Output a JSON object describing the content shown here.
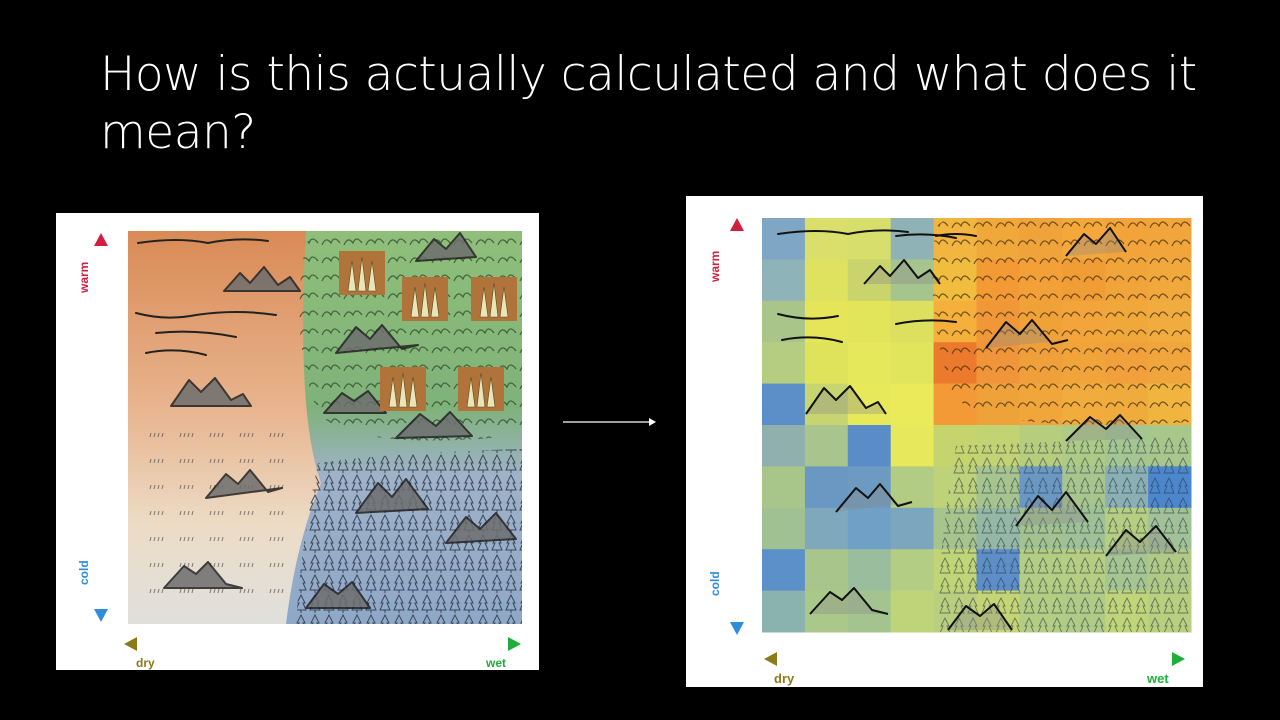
{
  "slide": {
    "title": "How is this actually calculated and what does it mean?"
  },
  "left_panel": {
    "axis_labels": {
      "warm": "warm",
      "cold": "cold",
      "dry": "dry",
      "wet": "wet"
    }
  },
  "right_panel": {
    "axis_labels": {
      "warm": "warm",
      "cold": "cold",
      "dry": "dry",
      "wet": "wet"
    },
    "grid": {
      "rows": 10,
      "cols": 10,
      "colors": [
        [
          "#7fa6c4",
          "#d9df6a",
          "#d8de6c",
          "#8fb2b6",
          "#f2b640",
          "#f0a83a",
          "#f0a33a",
          "#f4a83c",
          "#f2a43a",
          "#f1a53b"
        ],
        [
          "#8eb3b8",
          "#dfe25e",
          "#c9d46d",
          "#a6c48e",
          "#f0bd3f",
          "#f39a35",
          "#f3a038",
          "#f19d36",
          "#f0a43a",
          "#f1a83c"
        ],
        [
          "#a9c58a",
          "#e6e55a",
          "#e2e45a",
          "#dce05e",
          "#f5b03b",
          "#f09837",
          "#f0a239",
          "#f3a43a",
          "#f0a83b",
          "#f0ac3e"
        ],
        [
          "#b4cd80",
          "#dfe35c",
          "#e6e85c",
          "#e1e55c",
          "#ec7a2c",
          "#f1953a",
          "#f0a03a",
          "#f1a43a",
          "#f1a03b",
          "#f0a63c"
        ],
        [
          "#5c8fc8",
          "#c6d570",
          "#e8e85b",
          "#eaea5a",
          "#f39a36",
          "#f0a23a",
          "#f1a63b",
          "#f2ac3d",
          "#f0ab3d",
          "#f0b43f"
        ],
        [
          "#8fb0ad",
          "#a9c48c",
          "#5a8dc8",
          "#e8e85d",
          "#c6d46e",
          "#c3d373",
          "#b7cd7e",
          "#aecb86",
          "#a4c690",
          "#a8c78b"
        ],
        [
          "#a9c68a",
          "#6a98c3",
          "#6d9ac1",
          "#b2cc84",
          "#bed27a",
          "#a6c58e",
          "#6b98c3",
          "#a7c68e",
          "#8ab0b4",
          "#4c86cc"
        ],
        [
          "#a0c293",
          "#80a8bd",
          "#70a0c5",
          "#7ca6bd",
          "#a7c48c",
          "#94b8a5",
          "#a2c290",
          "#9fc196",
          "#b6ce80",
          "#a1c296"
        ],
        [
          "#5c90c9",
          "#a8c58c",
          "#9abd9e",
          "#b3cd84",
          "#c1d476",
          "#5d8ec8",
          "#b3cd82",
          "#b5ce82",
          "#a5c591",
          "#b0ca86"
        ],
        [
          "#8ab3b0",
          "#aac88a",
          "#a4c48f",
          "#bfd478",
          "#b9cf7e",
          "#c5d574",
          "#b3cd82",
          "#b0cb86",
          "#c0d478",
          "#b8cf7e"
        ]
      ]
    }
  },
  "colors": {
    "warm_red": "#d11f3f",
    "cold_blue": "#2f8ddc",
    "dry_brown": "#8c7a18",
    "wet_green": "#1fae3a"
  }
}
